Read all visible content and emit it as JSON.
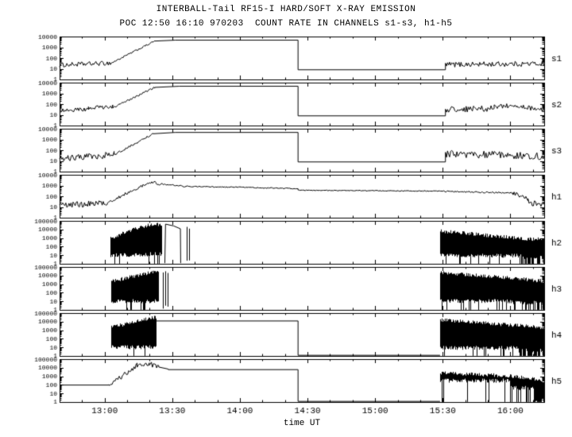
{
  "title1": "INTERBALL-Tail RF15-I HARD/SOFT X-RAY EMISSION",
  "title2": "POC 12:50 16:10 970203  COUNT RATE IN CHANNELS s1-s3, h1-h5",
  "xlabel": "time UT",
  "colors": {
    "fg": "#000000",
    "bg": "#ffffff"
  },
  "chart_data": {
    "type": "line",
    "title": "INTERBALL-Tail RF15-I HARD/SOFT X-RAY EMISSION",
    "subtitle": "POC 12:50 16:10 970203  COUNT RATE IN CHANNELS s1-s3, h1-h5",
    "xlabel": "time UT",
    "yscale": "log",
    "grid": false,
    "x_range_hours": [
      12.6667,
      16.25
    ],
    "x_ticks": [
      {
        "t": 13.0,
        "label": "13:00"
      },
      {
        "t": 13.5,
        "label": "13:30"
      },
      {
        "t": 14.0,
        "label": "14:00"
      },
      {
        "t": 14.5,
        "label": "14:30"
      },
      {
        "t": 15.0,
        "label": "15:00"
      },
      {
        "t": 15.5,
        "label": "15:30"
      },
      {
        "t": 16.0,
        "label": "16:00"
      }
    ],
    "panels": [
      {
        "label": "s1",
        "ymax": 10000,
        "ytick_labels": [
          "10000",
          "1000",
          "100",
          "10",
          "1"
        ],
        "segments": [
          {
            "mode": "noise",
            "t0": 12.6667,
            "t1": 13.05,
            "v0": 22,
            "v1": 34,
            "amp": 0.3
          },
          {
            "mode": "noise",
            "t0": 13.05,
            "t1": 13.37,
            "v0": 34,
            "v1": 3800,
            "amp": 0.12
          },
          {
            "mode": "line",
            "t0": 13.37,
            "t1": 13.52,
            "v0": 3800,
            "v1": 4600
          },
          {
            "mode": "line",
            "t0": 13.52,
            "t1": 14.43,
            "v0": 4600,
            "v1": 4600
          },
          {
            "mode": "line",
            "t0": 14.43,
            "t1": 15.52,
            "v0": 8,
            "v1": 8
          },
          {
            "mode": "noise",
            "t0": 15.52,
            "t1": 16.25,
            "v0": 24,
            "v1": 30,
            "amp": 0.35
          }
        ]
      },
      {
        "label": "s2",
        "ymax": 10000,
        "ytick_labels": [
          "10000",
          "1000",
          "100",
          "10",
          "1"
        ],
        "segments": [
          {
            "mode": "noise",
            "t0": 12.6667,
            "t1": 12.88,
            "v0": 26,
            "v1": 30,
            "amp": 0.3
          },
          {
            "mode": "noise",
            "t0": 12.88,
            "t1": 13.06,
            "v0": 42,
            "v1": 58,
            "amp": 0.25
          },
          {
            "mode": "noise",
            "t0": 13.06,
            "t1": 13.37,
            "v0": 45,
            "v1": 3600,
            "amp": 0.12
          },
          {
            "mode": "line",
            "t0": 13.37,
            "t1": 13.55,
            "v0": 3600,
            "v1": 4600
          },
          {
            "mode": "line",
            "t0": 13.55,
            "t1": 14.43,
            "v0": 4600,
            "v1": 4600
          },
          {
            "mode": "line",
            "t0": 14.43,
            "t1": 15.52,
            "v0": 8,
            "v1": 8
          },
          {
            "mode": "noise",
            "t0": 15.52,
            "t1": 15.88,
            "v0": 32,
            "v1": 38,
            "amp": 0.4
          },
          {
            "mode": "noise",
            "t0": 15.88,
            "t1": 16.05,
            "v0": 60,
            "v1": 72,
            "amp": 0.3
          },
          {
            "mode": "noise",
            "t0": 16.05,
            "t1": 16.25,
            "v0": 48,
            "v1": 36,
            "amp": 0.38
          }
        ]
      },
      {
        "label": "s3",
        "ymax": 10000,
        "ytick_labels": [
          "10000",
          "1000",
          "100",
          "10",
          "1"
        ],
        "segments": [
          {
            "mode": "noise",
            "t0": 12.6667,
            "t1": 13.07,
            "v0": 16,
            "v1": 38,
            "amp": 0.45
          },
          {
            "mode": "noise",
            "t0": 13.07,
            "t1": 13.36,
            "v0": 38,
            "v1": 3400,
            "amp": 0.14
          },
          {
            "mode": "line",
            "t0": 13.36,
            "t1": 13.52,
            "v0": 3400,
            "v1": 4500
          },
          {
            "mode": "line",
            "t0": 13.52,
            "t1": 14.43,
            "v0": 4500,
            "v1": 4500
          },
          {
            "mode": "line",
            "t0": 14.43,
            "t1": 15.52,
            "v0": 8,
            "v1": 8
          },
          {
            "mode": "noise",
            "t0": 15.52,
            "t1": 16.25,
            "v0": 46,
            "v1": 28,
            "amp": 0.5
          }
        ]
      },
      {
        "label": "h1",
        "ymax": 10000,
        "ytick_labels": [
          "10000",
          "1000",
          "100",
          "10",
          "1"
        ],
        "segments": [
          {
            "mode": "noise",
            "t0": 12.6667,
            "t1": 13.02,
            "v0": 14,
            "v1": 24,
            "amp": 0.4
          },
          {
            "mode": "noise",
            "t0": 13.02,
            "t1": 13.3,
            "v0": 24,
            "v1": 1300,
            "amp": 0.2
          },
          {
            "mode": "noise",
            "t0": 13.3,
            "t1": 13.38,
            "v0": 1500,
            "v1": 2400,
            "amp": 0.18
          },
          {
            "mode": "noise",
            "t0": 13.38,
            "t1": 13.6,
            "v0": 1400,
            "v1": 850,
            "amp": 0.12
          },
          {
            "mode": "noise",
            "t0": 13.6,
            "t1": 14.43,
            "v0": 850,
            "v1": 520,
            "amp": 0.07
          },
          {
            "mode": "noise",
            "t0": 14.43,
            "t1": 15.5,
            "v0": 360,
            "v1": 300,
            "amp": 0.05
          },
          {
            "mode": "noise",
            "t0": 15.5,
            "t1": 16.02,
            "v0": 285,
            "v1": 205,
            "amp": 0.1
          },
          {
            "mode": "noise",
            "t0": 16.02,
            "t1": 16.13,
            "v0": 200,
            "v1": 55,
            "amp": 0.25
          },
          {
            "mode": "noise",
            "t0": 16.13,
            "t1": 16.25,
            "v0": 30,
            "v1": 18,
            "amp": 0.45
          }
        ]
      },
      {
        "label": "h2",
        "ymax": 100000,
        "ytick_labels": [
          "100000",
          "10000",
          "1000",
          "100",
          "10",
          "1"
        ],
        "segments": [
          {
            "mode": "burst",
            "t0": 13.04,
            "t1": 13.18,
            "v0": 900,
            "v1": 7000,
            "base": 6,
            "drop": 0.14
          },
          {
            "mode": "burst",
            "t0": 13.18,
            "t1": 13.33,
            "v0": 7000,
            "v1": 33000,
            "base": 6,
            "drop": 0.06
          },
          {
            "mode": "burst",
            "t0": 13.33,
            "t1": 13.42,
            "v0": 33000,
            "v1": 40000,
            "base": 8,
            "drop": 0.25
          },
          {
            "mode": "line",
            "t0": 13.445,
            "t1": 13.45,
            "v0": 1.2,
            "v1": 42000
          },
          {
            "mode": "line",
            "t0": 13.45,
            "t1": 13.51,
            "v0": 42000,
            "v1": 26000
          },
          {
            "mode": "line",
            "t0": 13.51,
            "t1": 13.56,
            "v0": 26000,
            "v1": 12000
          },
          {
            "mode": "line",
            "t0": 13.56,
            "t1": 13.562,
            "v0": 12000,
            "v1": 1.2
          },
          {
            "mode": "burst",
            "t0": 13.58,
            "t1": 13.65,
            "v0": 22000,
            "v1": 8000,
            "base": 1.3,
            "drop": 0,
            "density": 0.22
          },
          {
            "mode": "burst",
            "t0": 15.48,
            "t1": 16.08,
            "v0": 6500,
            "v1": 900,
            "base": 5,
            "drop": 0.12
          },
          {
            "mode": "burst",
            "t0": 16.08,
            "t1": 16.25,
            "v0": 900,
            "v1": 650,
            "base": 3,
            "drop": 0.5
          }
        ]
      },
      {
        "label": "h3",
        "ymax": 100000,
        "ytick_labels": [
          "100000",
          "10000",
          "1000",
          "100",
          "10",
          "1"
        ],
        "segments": [
          {
            "mode": "burst",
            "t0": 13.05,
            "t1": 13.4,
            "v0": 2200,
            "v1": 36000,
            "base": 6,
            "drop": 0.07
          },
          {
            "mode": "burst",
            "t0": 13.42,
            "t1": 13.47,
            "v0": 26000,
            "v1": 18000,
            "base": 1.3,
            "drop": 0,
            "density": 0.2
          },
          {
            "mode": "burst",
            "t0": 15.48,
            "t1": 16.02,
            "v0": 22000,
            "v1": 5000,
            "base": 6,
            "drop": 0.1
          },
          {
            "mode": "burst",
            "t0": 16.02,
            "t1": 16.25,
            "v0": 5000,
            "v1": 2200,
            "base": 4,
            "drop": 0.45
          }
        ]
      },
      {
        "label": "h4",
        "ymax": 100000,
        "ytick_labels": [
          "100000",
          "10000",
          "1000",
          "100",
          "10",
          "1"
        ],
        "segments": [
          {
            "mode": "burst",
            "t0": 13.05,
            "t1": 13.38,
            "v0": 2200,
            "v1": 36000,
            "base": 6,
            "drop": 0.07
          },
          {
            "mode": "line",
            "t0": 13.38,
            "t1": 14.43,
            "v0": 12000,
            "v1": 12000
          },
          {
            "mode": "line",
            "t0": 14.43,
            "t1": 15.48,
            "v0": 1.2,
            "v1": 1.2
          },
          {
            "mode": "burst",
            "t0": 15.48,
            "t1": 16.06,
            "v0": 16000,
            "v1": 3500,
            "base": 5,
            "drop": 0.12
          },
          {
            "mode": "burst",
            "t0": 16.06,
            "t1": 16.25,
            "v0": 3500,
            "v1": 1800,
            "base": 2.5,
            "drop": 0.5
          }
        ]
      },
      {
        "label": "h5",
        "ymax": 100000,
        "ytick_labels": [
          "100000",
          "10000",
          "1000",
          "100",
          "10",
          "1"
        ],
        "segments": [
          {
            "mode": "line",
            "t0": 12.6667,
            "t1": 13.03,
            "v0": 95,
            "v1": 95
          },
          {
            "mode": "noise",
            "t0": 13.03,
            "t1": 13.1,
            "v0": 95,
            "v1": 500,
            "amp": 0.6
          },
          {
            "mode": "noise",
            "t0": 13.1,
            "t1": 13.24,
            "v0": 500,
            "v1": 18000,
            "amp": 0.45
          },
          {
            "mode": "noise",
            "t0": 13.24,
            "t1": 13.33,
            "v0": 18000,
            "v1": 26000,
            "amp": 0.3
          },
          {
            "mode": "noise",
            "t0": 13.33,
            "t1": 13.4,
            "v0": 22000,
            "v1": 15000,
            "amp": 0.5
          },
          {
            "mode": "line",
            "t0": 13.4,
            "t1": 13.47,
            "v0": 12000,
            "v1": 7000
          },
          {
            "mode": "line",
            "t0": 13.47,
            "t1": 14.43,
            "v0": 6000,
            "v1": 6000
          },
          {
            "mode": "line",
            "t0": 14.43,
            "t1": 15.48,
            "v0": 1.2,
            "v1": 1.2
          },
          {
            "mode": "burst",
            "t0": 15.48,
            "t1": 16.0,
            "v0": 2600,
            "v1": 1100,
            "base": 180,
            "drop": 0.08
          },
          {
            "mode": "burst",
            "t0": 16.0,
            "t1": 16.18,
            "v0": 1100,
            "v1": 520,
            "base": 25,
            "drop": 0.4
          },
          {
            "mode": "burst",
            "t0": 16.18,
            "t1": 16.25,
            "v0": 420,
            "v1": 160,
            "base": 1.3,
            "drop": 0.75
          }
        ]
      }
    ]
  }
}
